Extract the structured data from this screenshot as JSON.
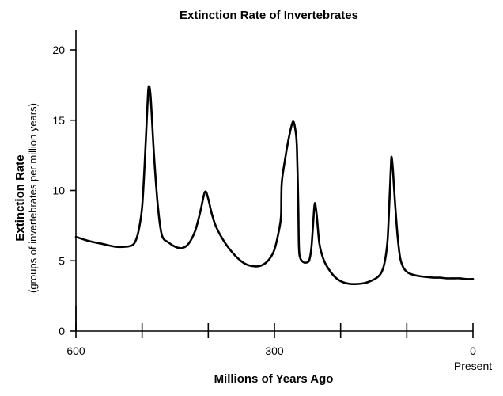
{
  "chart_data": {
    "type": "line",
    "title": "Extinction Rate of Invertebrates",
    "xlabel": "Millions of Years Ago",
    "ylabel": "Extinction Rate",
    "ylabel_sub": "(groups of invertebrates per million years)",
    "xlim": [
      600,
      0
    ],
    "ylim": [
      0,
      21
    ],
    "x_ticks": [
      600,
      500,
      400,
      300,
      200,
      100,
      0
    ],
    "x_tick_labels": [
      {
        "value": 600,
        "label": "600"
      },
      {
        "value": 300,
        "label": "300"
      },
      {
        "value": 0,
        "label": "0"
      }
    ],
    "x_end_note": "Present",
    "y_ticks": [
      0,
      5,
      10,
      15,
      20
    ],
    "y_tick_labels": [
      "0",
      "5",
      "10",
      "15",
      "20"
    ],
    "series": [
      {
        "name": "Extinction Rate",
        "points": [
          [
            600,
            6.7
          ],
          [
            580,
            6.4
          ],
          [
            560,
            6.2
          ],
          [
            540,
            6.0
          ],
          [
            525,
            6.0
          ],
          [
            515,
            6.1
          ],
          [
            510,
            6.4
          ],
          [
            505,
            7.2
          ],
          [
            500,
            8.8
          ],
          [
            496,
            12.0
          ],
          [
            492,
            16.0
          ],
          [
            490,
            17.4
          ],
          [
            487,
            16.6
          ],
          [
            482,
            12.5
          ],
          [
            476,
            8.8
          ],
          [
            470,
            6.8
          ],
          [
            460,
            6.3
          ],
          [
            450,
            6.0
          ],
          [
            440,
            5.9
          ],
          [
            430,
            6.2
          ],
          [
            420,
            7.1
          ],
          [
            412,
            8.5
          ],
          [
            405,
            9.9
          ],
          [
            400,
            9.4
          ],
          [
            395,
            8.4
          ],
          [
            388,
            7.4
          ],
          [
            375,
            6.3
          ],
          [
            360,
            5.4
          ],
          [
            345,
            4.8
          ],
          [
            330,
            4.6
          ],
          [
            318,
            4.7
          ],
          [
            308,
            5.1
          ],
          [
            300,
            5.8
          ],
          [
            293,
            7.2
          ],
          [
            290,
            8.2
          ],
          [
            289,
            10.5
          ],
          [
            284,
            12.2
          ],
          [
            278,
            13.8
          ],
          [
            272,
            14.9
          ],
          [
            268,
            14.2
          ],
          [
            266,
            13.0
          ],
          [
            264,
            9.0
          ],
          [
            263,
            6.0
          ],
          [
            261,
            5.2
          ],
          [
            256,
            4.9
          ],
          [
            250,
            4.9
          ],
          [
            247,
            5.1
          ],
          [
            244,
            6.0
          ],
          [
            241,
            8.0
          ],
          [
            239,
            9.1
          ],
          [
            236,
            8.2
          ],
          [
            232,
            6.2
          ],
          [
            225,
            5.0
          ],
          [
            215,
            4.2
          ],
          [
            205,
            3.7
          ],
          [
            195,
            3.45
          ],
          [
            185,
            3.35
          ],
          [
            175,
            3.35
          ],
          [
            165,
            3.4
          ],
          [
            155,
            3.55
          ],
          [
            145,
            3.8
          ],
          [
            138,
            4.2
          ],
          [
            133,
            5.0
          ],
          [
            129,
            6.5
          ],
          [
            126,
            9.5
          ],
          [
            124,
            11.7
          ],
          [
            123,
            12.4
          ],
          [
            121,
            11.5
          ],
          [
            118,
            9.3
          ],
          [
            114,
            6.8
          ],
          [
            110,
            5.2
          ],
          [
            105,
            4.5
          ],
          [
            98,
            4.15
          ],
          [
            90,
            4.0
          ],
          [
            80,
            3.9
          ],
          [
            70,
            3.85
          ],
          [
            60,
            3.8
          ],
          [
            50,
            3.8
          ],
          [
            40,
            3.75
          ],
          [
            30,
            3.75
          ],
          [
            20,
            3.75
          ],
          [
            10,
            3.7
          ],
          [
            0,
            3.7
          ]
        ]
      }
    ]
  }
}
